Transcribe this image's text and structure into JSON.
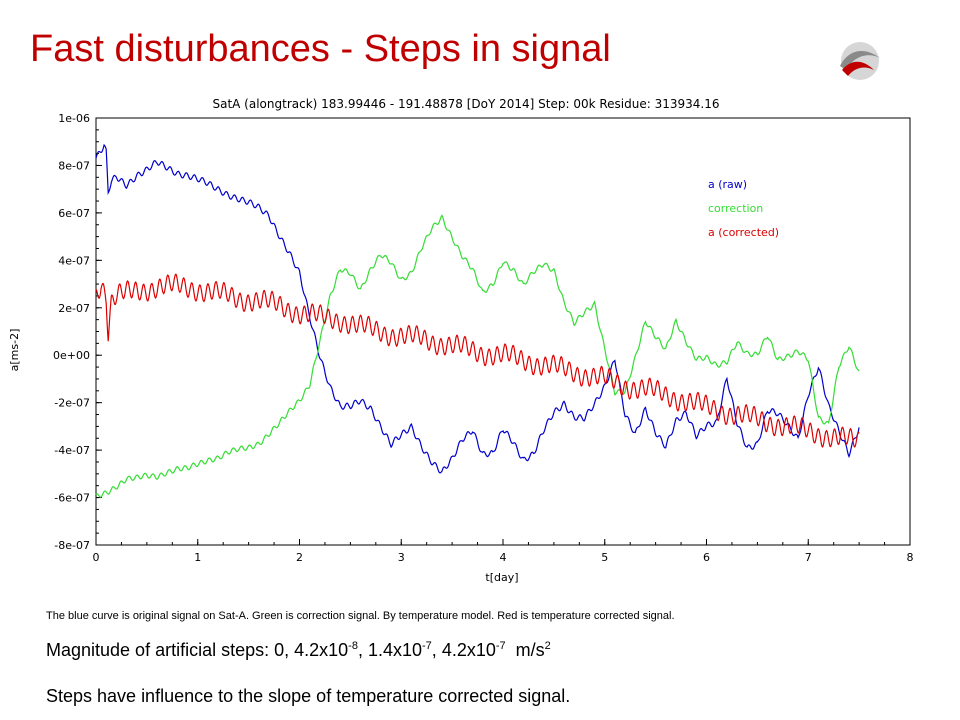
{
  "slide": {
    "title": "Fast disturbances - Steps in signal",
    "caption": "The blue curve is original signal on Sat-A. Green is correction signal. By temperature model.  Red is temperature corrected signal.",
    "magnitude_prefix": "Magnitude of artificial steps: 0, 4.2x10",
    "magnitude_parts": [
      {
        "base": "4.2x10",
        "exp": "-8"
      },
      {
        "base": "1.4x10",
        "exp": "-7"
      },
      {
        "base": "4.2x10",
        "exp": "-7"
      }
    ],
    "magnitude_unit": "m/s",
    "magnitude_unit_exp": "2",
    "line2": "Steps have influence to the slope of temperature corrected signal.",
    "logo_icon": "swirl-logo-icon"
  },
  "chart_data": {
    "type": "line",
    "title": "SatA   (alongtrack)   183.99446 - 191.48878  [DoY 2014]    Step: 00k   Residue: 313934.16",
    "xlabel": "t[day]",
    "ylabel": "a[ms-2]",
    "xlim": [
      0,
      8
    ],
    "ylim": [
      -8e-07,
      1e-06
    ],
    "xticks": [
      "0",
      "1",
      "2",
      "3",
      "4",
      "5",
      "6",
      "7",
      "8"
    ],
    "yticks": [
      "1e-06",
      "8e-07",
      "6e-07",
      "4e-07",
      "2e-07",
      "0e+00",
      "-2e-07",
      "-4e-07",
      "-6e-07",
      "-8e-07"
    ],
    "legend_position": "top-right",
    "grid": false,
    "series": [
      {
        "name": "a (raw)",
        "color": "#0000cc",
        "x": [
          0,
          0.05,
          0.08,
          0.1,
          0.12,
          0.15,
          0.2,
          0.3,
          0.4,
          0.5,
          0.6,
          0.7,
          0.8,
          0.9,
          1.0,
          1.1,
          1.2,
          1.3,
          1.4,
          1.5,
          1.6,
          1.7,
          1.8,
          1.9,
          2.0,
          2.1,
          2.2,
          2.3,
          2.4,
          2.5,
          2.6,
          2.7,
          2.8,
          2.9,
          3.0,
          3.1,
          3.2,
          3.3,
          3.4,
          3.5,
          3.6,
          3.7,
          3.8,
          3.9,
          4.0,
          4.1,
          4.2,
          4.3,
          4.4,
          4.5,
          4.6,
          4.7,
          4.8,
          4.9,
          5.0,
          5.1,
          5.2,
          5.3,
          5.4,
          5.5,
          5.6,
          5.7,
          5.8,
          5.9,
          6.0,
          6.1,
          6.2,
          6.3,
          6.4,
          6.5,
          6.6,
          6.7,
          6.8,
          6.9,
          7.0,
          7.1,
          7.2,
          7.3,
          7.4,
          7.5
        ],
        "y": [
          8.3e-07,
          8.6e-07,
          8.8e-07,
          8.5e-07,
          6.8e-07,
          7.3e-07,
          7.5e-07,
          7.2e-07,
          7.6e-07,
          7.8e-07,
          8.1e-07,
          7.9e-07,
          7.7e-07,
          7.6e-07,
          7.4e-07,
          7.2e-07,
          7e-07,
          6.8e-07,
          6.6e-07,
          6.4e-07,
          6.2e-07,
          5.9e-07,
          5.1e-07,
          4.3e-07,
          3.4e-07,
          1.6e-07,
          0.0,
          -1.3e-07,
          -2.2e-07,
          -2.2e-07,
          -1.9e-07,
          -2.2e-07,
          -3e-07,
          -3.8e-07,
          -3.4e-07,
          -3e-07,
          -3.8e-07,
          -4.5e-07,
          -5e-07,
          -4.4e-07,
          -3.5e-07,
          -3.1e-07,
          -4.2e-07,
          -4.2e-07,
          -3.1e-07,
          -3.6e-07,
          -4.4e-07,
          -4.2e-07,
          -3.2e-07,
          -2.4e-07,
          -2e-07,
          -2.6e-07,
          -2.7e-07,
          -2.1e-07,
          -1.3e-07,
          -1e-08,
          -2.5e-07,
          -3.4e-07,
          -2.3e-07,
          -3.2e-07,
          -3.8e-07,
          -2.8e-07,
          -2.5e-07,
          -3.4e-07,
          -2.9e-07,
          -2.8e-07,
          -1e-07,
          -2.9e-07,
          -3.9e-07,
          -3.7e-07,
          -2.3e-07,
          -2.5e-07,
          -3e-07,
          -3.5e-07,
          -1.6e-07,
          -5e-08,
          -2.2e-07,
          -3.2e-07,
          -4.1e-07,
          -3e-07
        ]
      },
      {
        "name": "correction",
        "color": "#33dd33",
        "x": [
          0,
          0.1,
          0.2,
          0.3,
          0.4,
          0.5,
          0.6,
          0.7,
          0.8,
          0.9,
          1.0,
          1.1,
          1.2,
          1.3,
          1.4,
          1.5,
          1.6,
          1.7,
          1.8,
          1.9,
          2.0,
          2.1,
          2.2,
          2.3,
          2.4,
          2.5,
          2.6,
          2.7,
          2.8,
          2.9,
          3.0,
          3.1,
          3.2,
          3.3,
          3.4,
          3.5,
          3.6,
          3.7,
          3.8,
          3.9,
          4.0,
          4.1,
          4.2,
          4.3,
          4.4,
          4.5,
          4.6,
          4.7,
          4.8,
          4.9,
          5.0,
          5.1,
          5.2,
          5.3,
          5.4,
          5.5,
          5.6,
          5.7,
          5.8,
          5.9,
          6.0,
          6.1,
          6.2,
          6.3,
          6.4,
          6.5,
          6.6,
          6.7,
          6.8,
          6.9,
          7.0,
          7.1,
          7.2,
          7.3,
          7.4,
          7.5
        ],
        "y": [
          -6e-07,
          -5.8e-07,
          -5.5e-07,
          -5.2e-07,
          -5.2e-07,
          -5.1e-07,
          -5.1e-07,
          -4.9e-07,
          -4.8e-07,
          -4.8e-07,
          -4.6e-07,
          -4.4e-07,
          -4.3e-07,
          -4.1e-07,
          -4e-07,
          -3.9e-07,
          -3.7e-07,
          -3.3e-07,
          -2.9e-07,
          -2.4e-07,
          -1.9e-07,
          -1.2e-07,
          6e-08,
          2.4e-07,
          3.6e-07,
          3.5e-07,
          2.8e-07,
          3.6e-07,
          4.2e-07,
          3.9e-07,
          3.2e-07,
          3.5e-07,
          4.5e-07,
          5.3e-07,
          5.8e-07,
          5e-07,
          4.2e-07,
          3.6e-07,
          2.6e-07,
          3e-07,
          4e-07,
          3.6e-07,
          2.9e-07,
          3.5e-07,
          3.9e-07,
          3.6e-07,
          2.2e-07,
          1.3e-07,
          1.8e-07,
          2.2e-07,
          3e-08,
          -1.6e-07,
          -1.6e-07,
          -1e-08,
          1.5e-07,
          8e-08,
          2e-08,
          1.4e-07,
          6e-08,
          -1e-08,
          -1e-08,
          -5e-08,
          -3e-08,
          6e-08,
          1e-08,
          0.0,
          8e-08,
          -2e-08,
          0.0,
          2e-08,
          -2e-08,
          -2.7e-07,
          -2.9e-07,
          -4e-08,
          4e-08,
          -8e-08
        ]
      },
      {
        "name": "a (corrected)",
        "color": "#dd0000",
        "x": [
          0,
          0.05,
          0.1,
          0.12,
          0.15,
          0.2,
          0.4,
          0.6,
          0.8,
          1.0,
          1.2,
          1.4,
          1.6,
          1.8,
          2.0,
          2.2,
          2.4,
          2.6,
          2.8,
          3.0,
          3.2,
          3.4,
          3.6,
          3.8,
          4.0,
          4.2,
          4.4,
          4.6,
          4.8,
          5.0,
          5.2,
          5.4,
          5.6,
          5.8,
          6.0,
          6.2,
          6.4,
          6.6,
          6.8,
          7.0,
          7.2,
          7.4,
          7.5
        ],
        "y": [
          2.6e-07,
          3.1e-07,
          2.5e-07,
          1e-07,
          2.2e-07,
          2.5e-07,
          2.7e-07,
          2.9e-07,
          2.9e-07,
          2.8e-07,
          2.6e-07,
          2.4e-07,
          2.3e-07,
          2.1e-07,
          1.8e-07,
          1.6e-07,
          1.5e-07,
          1.2e-07,
          1e-07,
          8e-08,
          7e-08,
          5e-08,
          3e-08,
          1e-08,
          0.0,
          -2e-08,
          -4e-08,
          -6e-08,
          -8e-08,
          -1e-07,
          -1.3e-07,
          -1.4e-07,
          -1.7e-07,
          -1.9e-07,
          -2.2e-07,
          -2.4e-07,
          -2.6e-07,
          -2.8e-07,
          -3e-07,
          -3.2e-07,
          -3.4e-07,
          -3.6e-07,
          -3.6e-07
        ]
      }
    ]
  }
}
